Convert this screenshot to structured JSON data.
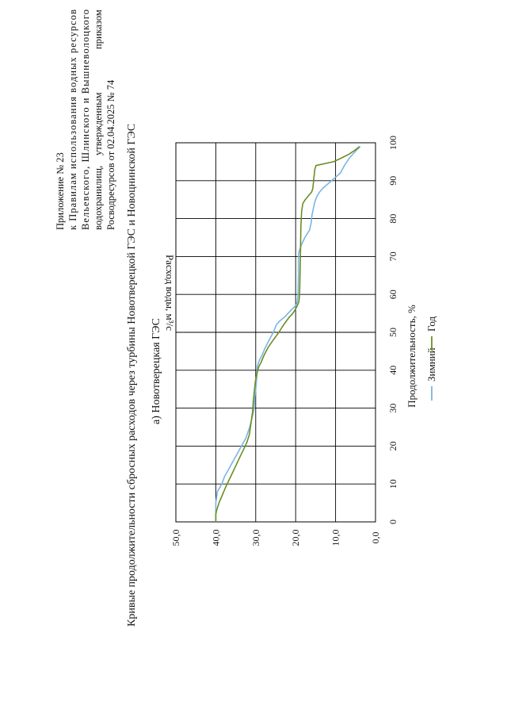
{
  "header": {
    "line1": "Приложение № 23",
    "line2": "к Правилам использования водных ресурсов",
    "line3": "Вельевского, Шлинского и Вышневолоцкого",
    "line4a": "водохранилищ,",
    "line4b": "утвержденным",
    "line4c": "приказом",
    "line5": "Росводресурсов от 02.04.2025 № 74"
  },
  "main_title": "Кривые продолжительности сбросных расходов через турбины Новотверецкой ГЭС и Новоцнинской ГЭС",
  "section_title": "а) Новотверецкая ГЭС",
  "chart_data": {
    "type": "line",
    "xlabel": "Продолжительность, %",
    "ylabel": "Расход воды, м³/с",
    "xlim": [
      0,
      100
    ],
    "ylim": [
      0,
      50
    ],
    "x_ticks": [
      "0",
      "10",
      "20",
      "30",
      "40",
      "50",
      "60",
      "70",
      "80",
      "90",
      "100"
    ],
    "y_ticks": [
      "0,0",
      "10,0",
      "20,0",
      "30,0",
      "40,0",
      "50,0"
    ],
    "grid": true,
    "legend_position": "bottom",
    "series": [
      {
        "name": "Зимний",
        "color": "#7ab5e3",
        "x": [
          0,
          1,
          2,
          3,
          5,
          8,
          10,
          12,
          14,
          16,
          18,
          20,
          22,
          25,
          28,
          30,
          33,
          36,
          39,
          41,
          42,
          43,
          44,
          46,
          48,
          50,
          52,
          53,
          54,
          55,
          56,
          57,
          58,
          60,
          65,
          70,
          71,
          72,
          73,
          75,
          77,
          79,
          80,
          81,
          82,
          83,
          84,
          85,
          86,
          87,
          88,
          90,
          92,
          94,
          96,
          98,
          99
        ],
        "y": [
          40.0,
          40.0,
          40.0,
          40.0,
          40.0,
          39.6,
          38.5,
          37.8,
          36.7,
          35.7,
          34.6,
          33.6,
          32.5,
          31.5,
          30.8,
          30.4,
          30.2,
          29.9,
          29.7,
          29.6,
          29.3,
          28.9,
          28.4,
          27.6,
          26.6,
          25.6,
          24.8,
          24.0,
          22.8,
          21.9,
          21.0,
          20.0,
          19.6,
          19.4,
          19.3,
          19.3,
          19.2,
          18.9,
          18.6,
          17.7,
          16.5,
          16.1,
          16.0,
          15.9,
          15.7,
          15.5,
          15.3,
          15.0,
          14.6,
          14.0,
          13.2,
          11.0,
          8.8,
          7.8,
          6.5,
          4.8,
          3.8
        ]
      },
      {
        "name": "Год",
        "color": "#6b8e23",
        "x": [
          0,
          1,
          2,
          3,
          5,
          7,
          9,
          11,
          13,
          15,
          17,
          19,
          21,
          23,
          26,
          29,
          32,
          35,
          37,
          38,
          39,
          40,
          41,
          42,
          44,
          46,
          48,
          50,
          52,
          54,
          55,
          56,
          57,
          58,
          60,
          70,
          78,
          82,
          84,
          85,
          86,
          87,
          88,
          89,
          90,
          91,
          92,
          93,
          94,
          95,
          96,
          97,
          98,
          99
        ],
        "y": [
          40.0,
          40.0,
          40.0,
          39.8,
          39.2,
          38.4,
          37.6,
          36.7,
          35.8,
          34.9,
          34.0,
          33.1,
          32.2,
          31.6,
          31.2,
          30.8,
          30.6,
          30.3,
          30.1,
          29.9,
          29.7,
          29.5,
          29.2,
          28.7,
          27.9,
          26.9,
          25.6,
          24.2,
          23.0,
          21.6,
          20.7,
          20.1,
          19.6,
          19.2,
          19.0,
          18.8,
          18.7,
          18.5,
          18.2,
          17.6,
          16.8,
          16.0,
          15.7,
          15.6,
          15.5,
          15.4,
          15.3,
          15.2,
          14.9,
          10.5,
          8.5,
          6.6,
          5.2,
          4.0
        ]
      }
    ]
  }
}
